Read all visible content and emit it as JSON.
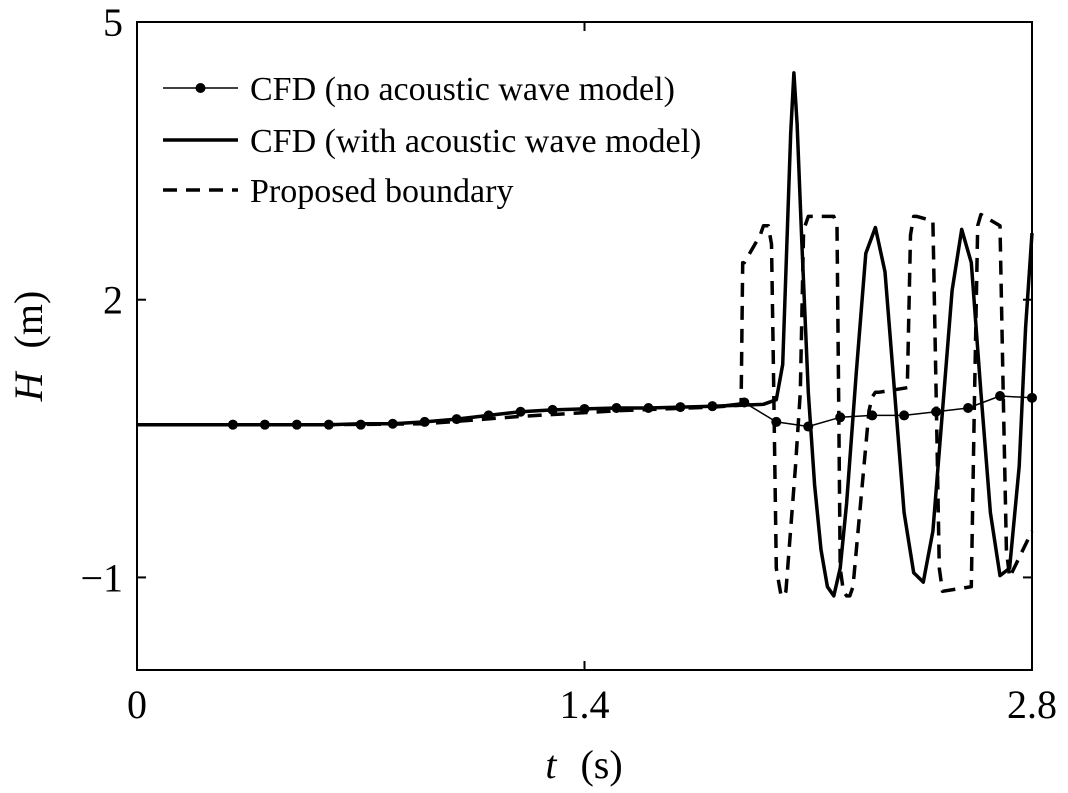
{
  "chart_data": {
    "type": "line",
    "xlabel": {
      "symbol": "t",
      "unit": "(s)"
    },
    "ylabel": {
      "symbol": "H",
      "unit": "(m)"
    },
    "xlim": [
      0,
      2.8
    ],
    "ylim": [
      -2,
      5
    ],
    "xticks": [
      0,
      1.4,
      2.8
    ],
    "xtick_labels": [
      "0",
      "1.4",
      "2.8"
    ],
    "yticks": [
      -1,
      2,
      5
    ],
    "ytick_labels": [
      "−1",
      "2",
      "5"
    ],
    "grid": false,
    "legend_position": "top-left",
    "series": [
      {
        "name": "CFD (no acoustic wave model)",
        "style": "thin-solid-dot",
        "color": "#000000",
        "x": [
          0.3,
          0.4,
          0.5,
          0.6,
          0.7,
          0.8,
          0.9,
          1.0,
          1.1,
          1.2,
          1.3,
          1.4,
          1.5,
          1.6,
          1.7,
          1.8,
          1.9,
          2.0,
          2.1,
          2.2,
          2.3,
          2.4,
          2.5,
          2.6,
          2.7,
          2.8
        ],
        "y": [
          0.65,
          0.65,
          0.65,
          0.65,
          0.65,
          0.66,
          0.68,
          0.71,
          0.75,
          0.79,
          0.81,
          0.82,
          0.83,
          0.83,
          0.84,
          0.85,
          0.89,
          0.68,
          0.63,
          0.73,
          0.75,
          0.75,
          0.79,
          0.83,
          0.96,
          0.94
        ]
      },
      {
        "name": "CFD (with acoustic wave model)",
        "style": "thick-solid",
        "color": "#000000",
        "x": [
          0.0,
          0.1,
          0.2,
          0.3,
          0.4,
          0.5,
          0.6,
          0.7,
          0.8,
          0.9,
          1.0,
          1.1,
          1.2,
          1.3,
          1.4,
          1.5,
          1.6,
          1.7,
          1.8,
          1.96,
          2.0,
          2.02,
          2.035,
          2.045,
          2.055,
          2.065,
          2.08,
          2.1,
          2.12,
          2.14,
          2.16,
          2.18,
          2.2,
          2.22,
          2.25,
          2.28,
          2.31,
          2.34,
          2.37,
          2.4,
          2.43,
          2.46,
          2.49,
          2.52,
          2.55,
          2.58,
          2.61,
          2.64,
          2.67,
          2.7,
          2.73,
          2.76,
          2.78,
          2.8
        ],
        "y": [
          0.65,
          0.65,
          0.65,
          0.65,
          0.65,
          0.65,
          0.65,
          0.66,
          0.66,
          0.68,
          0.71,
          0.75,
          0.79,
          0.81,
          0.82,
          0.83,
          0.83,
          0.84,
          0.85,
          0.87,
          0.92,
          1.3,
          2.8,
          3.8,
          4.45,
          3.9,
          2.6,
          1.0,
          0.0,
          -0.7,
          -1.1,
          -1.2,
          -0.9,
          -0.2,
          1.2,
          2.5,
          2.78,
          2.3,
          1.0,
          -0.3,
          -0.95,
          -1.05,
          -0.5,
          0.8,
          2.1,
          2.76,
          2.4,
          1.0,
          -0.3,
          -0.98,
          -0.9,
          0.2,
          1.7,
          2.72
        ]
      },
      {
        "name": "Proposed boundary",
        "style": "thick-dashed",
        "color": "#000000",
        "x": [
          0.0,
          0.3,
          0.6,
          0.9,
          1.2,
          1.5,
          1.8,
          1.89,
          1.895,
          1.9,
          1.95,
          1.96,
          1.975,
          1.985,
          1.99,
          2.0,
          2.015,
          2.025,
          2.03,
          2.06,
          2.075,
          2.085,
          2.09,
          2.1,
          2.18,
          2.19,
          2.195,
          2.2,
          2.21,
          2.22,
          2.23,
          2.24,
          2.29,
          2.3,
          2.31,
          2.32,
          2.41,
          2.42,
          2.43,
          2.44,
          2.49,
          2.5,
          2.51,
          2.52,
          2.61,
          2.62,
          2.63,
          2.64,
          2.7,
          2.71,
          2.72,
          2.73,
          2.8
        ],
        "y": [
          0.65,
          0.65,
          0.65,
          0.66,
          0.74,
          0.8,
          0.84,
          0.86,
          2.4,
          2.4,
          2.7,
          2.8,
          2.8,
          2.6,
          1.5,
          -0.9,
          -1.2,
          -1.2,
          -1.15,
          0.2,
          1.0,
          2.7,
          2.8,
          2.9,
          2.9,
          2.8,
          1.0,
          -0.9,
          -1.15,
          -1.2,
          -1.2,
          -1.1,
          0.8,
          0.95,
          1.0,
          1.0,
          1.05,
          2.7,
          2.9,
          2.9,
          2.85,
          1.0,
          -0.9,
          -1.15,
          -1.1,
          0.95,
          2.8,
          2.92,
          2.8,
          1.0,
          -0.7,
          -1.0,
          -0.5
        ]
      }
    ]
  }
}
